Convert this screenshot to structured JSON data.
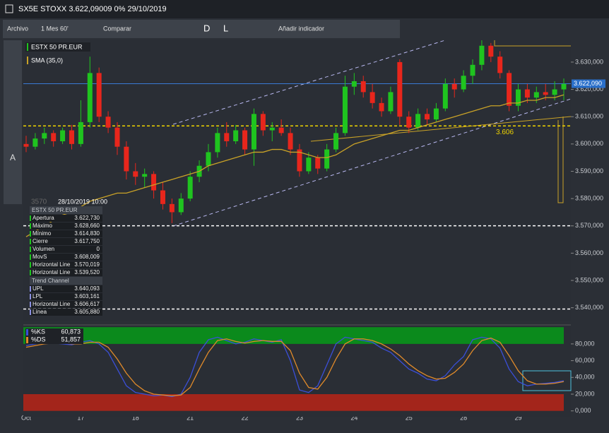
{
  "ui": {
    "title": "SX5E STOXX 3.622,09009 0% 29/10/2019",
    "toolbar": [
      "Archivo",
      "1 Mes 60'",
      "Comparar",
      "Añadir indicador",
      "D",
      "L"
    ],
    "tool_text": "A",
    "info": {
      "ghost": "3570",
      "date": "28/10/2019 10:00",
      "sections": [
        {
          "title": "ESTX 50 PR.EUR",
          "rows": [
            [
              "Apertura",
              "3.622,730"
            ],
            [
              "Máximo",
              "3.628,660"
            ],
            [
              "Mínimo",
              "3.614,830"
            ],
            [
              "Cierre",
              "3.617,750"
            ],
            [
              "Volumen",
              "0"
            ],
            [
              "MovS",
              "3.608,009"
            ],
            [
              "Horizontal Line",
              "3.570,019"
            ],
            [
              "Horizontal Line",
              "3.539,520"
            ]
          ]
        },
        {
          "title": "Trend Channel",
          "rows": [
            [
              "UPL",
              "3.640,093"
            ],
            [
              "LPL",
              "3.603,161"
            ],
            [
              "Horizontal Line",
              "3.606,617"
            ],
            [
              "Línea",
              "3.605,880"
            ]
          ]
        }
      ]
    }
  },
  "chart_data": [
    {
      "type": "candlestick",
      "legend": [
        "ESTX 50 PR.EUR",
        "SMA (35,0)"
      ],
      "up_color": "#1fc41f",
      "down_color": "#e8261c",
      "sma_color": "#c9a227",
      "categories": [
        "Oct",
        null,
        null,
        null,
        null,
        null,
        "17",
        null,
        null,
        null,
        null,
        null,
        "18",
        null,
        null,
        null,
        null,
        null,
        "21",
        null,
        null,
        null,
        null,
        null,
        "22",
        null,
        null,
        null,
        null,
        null,
        "23",
        null,
        null,
        null,
        null,
        null,
        "24",
        null,
        null,
        null,
        null,
        null,
        "25",
        null,
        null,
        null,
        null,
        null,
        "28",
        null,
        null,
        null,
        null,
        null,
        "29",
        null,
        null,
        null,
        null,
        null
      ],
      "candles": [
        [
          3600,
          3603,
          3597,
          3599
        ],
        [
          3599,
          3604,
          3598,
          3602
        ],
        [
          3602,
          3606,
          3600,
          3604
        ],
        [
          3604,
          3605,
          3599,
          3601
        ],
        [
          3601,
          3606,
          3600,
          3605
        ],
        [
          3605,
          3607,
          3598,
          3600
        ],
        [
          3600,
          3616,
          3599,
          3608
        ],
        [
          3608,
          3632,
          3606,
          3626
        ],
        [
          3626,
          3628,
          3608,
          3610
        ],
        [
          3610,
          3612,
          3604,
          3606
        ],
        [
          3606,
          3608,
          3596,
          3599
        ],
        [
          3599,
          3601,
          3587,
          3590
        ],
        [
          3590,
          3593,
          3585,
          3588
        ],
        [
          3588,
          3591,
          3584,
          3589
        ],
        [
          3589,
          3590,
          3580,
          3583
        ],
        [
          3583,
          3586,
          3576,
          3578
        ],
        [
          3578,
          3580,
          3571,
          3575
        ],
        [
          3575,
          3582,
          3574,
          3580
        ],
        [
          3580,
          3590,
          3579,
          3588
        ],
        [
          3588,
          3594,
          3586,
          3592
        ],
        [
          3592,
          3600,
          3590,
          3597
        ],
        [
          3597,
          3606,
          3595,
          3604
        ],
        [
          3604,
          3608,
          3599,
          3601
        ],
        [
          3601,
          3607,
          3600,
          3605
        ],
        [
          3605,
          3606,
          3596,
          3598
        ],
        [
          3598,
          3613,
          3592,
          3611
        ],
        [
          3611,
          3612,
          3603,
          3605
        ],
        [
          3605,
          3608,
          3601,
          3606
        ],
        [
          3606,
          3609,
          3603,
          3604
        ],
        [
          3604,
          3606,
          3596,
          3598
        ],
        [
          3598,
          3600,
          3588,
          3590
        ],
        [
          3590,
          3597,
          3589,
          3595
        ],
        [
          3595,
          3596,
          3589,
          3591
        ],
        [
          3591,
          3600,
          3590,
          3598
        ],
        [
          3598,
          3606,
          3597,
          3604
        ],
        [
          3604,
          3625,
          3603,
          3621
        ],
        [
          3621,
          3626,
          3618,
          3623
        ],
        [
          3623,
          3625,
          3617,
          3619
        ],
        [
          3619,
          3622,
          3613,
          3615
        ],
        [
          3615,
          3617,
          3610,
          3612
        ],
        [
          3612,
          3621,
          3611,
          3619
        ],
        [
          3630,
          3631,
          3607,
          3610
        ],
        [
          3610,
          3612,
          3604,
          3606
        ],
        [
          3606,
          3613,
          3605,
          3611
        ],
        [
          3611,
          3613,
          3607,
          3609
        ],
        [
          3609,
          3615,
          3608,
          3613
        ],
        [
          3613,
          3624,
          3612,
          3622
        ],
        [
          3622,
          3624,
          3617,
          3620
        ],
        [
          3620,
          3627,
          3619,
          3625
        ],
        [
          3625,
          3631,
          3622,
          3629
        ],
        [
          3629,
          3638,
          3627,
          3636
        ],
        [
          3636,
          3637,
          3630,
          3632
        ],
        [
          3632,
          3634,
          3624,
          3626
        ],
        [
          3626,
          3627,
          3612,
          3614
        ],
        [
          3614,
          3622,
          3612,
          3620
        ],
        [
          3620,
          3622,
          3615,
          3617
        ],
        [
          3617,
          3621,
          3615,
          3619
        ],
        [
          3619,
          3622,
          3616,
          3618
        ],
        [
          3618,
          3623,
          3616,
          3620
        ],
        [
          3620,
          3624,
          3616,
          3622
        ]
      ],
      "sma": [
        3566,
        3568,
        3570,
        3572,
        3574,
        3575,
        3577,
        3579,
        3580,
        3581,
        3582,
        3582,
        3583,
        3584,
        3585,
        3586,
        3587,
        3588,
        3589,
        3590,
        3592,
        3593,
        3594,
        3595,
        3596,
        3597,
        3597,
        3598,
        3598,
        3597,
        3597,
        3596,
        3595,
        3595,
        3596,
        3598,
        3600,
        3601,
        3602,
        3603,
        3604,
        3605,
        3605,
        3606,
        3607,
        3608,
        3609,
        3610,
        3611,
        3612,
        3613,
        3614,
        3614,
        3615,
        3615,
        3616,
        3616,
        3617,
        3617,
        3618
      ],
      "ylim": [
        3535,
        3638
      ],
      "yticks": [
        {
          "value": 3540,
          "label": "3.540,000"
        },
        {
          "value": 3550,
          "label": "3.550,000"
        },
        {
          "value": 3560,
          "label": "3.560,000"
        },
        {
          "value": 3570,
          "label": "3.570,000"
        },
        {
          "value": 3580,
          "label": "3.580,000"
        },
        {
          "value": 3590,
          "label": "3.590,000"
        },
        {
          "value": 3600,
          "label": "3.600,000"
        },
        {
          "value": 3610,
          "label": "3.610,000"
        },
        {
          "value": 3620,
          "label": "3.620,000"
        },
        {
          "value": 3630,
          "label": "3.630,000"
        }
      ],
      "last": {
        "value": 3622.09,
        "label": "3.622,090"
      },
      "hlines": [
        {
          "value": 3570.019,
          "color": "#ffffff"
        },
        {
          "value": 3539.52,
          "color": "#ffffff"
        },
        {
          "value": 3606.617,
          "color": "#f0d400",
          "label": "3.606"
        }
      ]
    },
    {
      "type": "stochastic",
      "series": [
        {
          "name": "%KS",
          "legend_value": "60,873",
          "color": "#3b4fd8",
          "values": [
            78,
            80,
            82,
            81,
            80,
            79,
            82,
            84,
            80,
            70,
            50,
            30,
            22,
            20,
            18,
            19,
            17,
            20,
            40,
            70,
            85,
            88,
            84,
            80,
            82,
            86,
            84,
            82,
            85,
            60,
            25,
            22,
            30,
            55,
            80,
            88,
            86,
            84,
            82,
            75,
            70,
            60,
            50,
            45,
            38,
            36,
            42,
            55,
            65,
            85,
            88,
            86,
            75,
            50,
            35,
            30,
            32,
            33,
            34,
            36
          ]
        },
        {
          "name": "%DS",
          "legend_value": "51,857",
          "color": "#e08a2a",
          "values": [
            76,
            78,
            80,
            81,
            81,
            80,
            80,
            82,
            82,
            76,
            62,
            45,
            32,
            24,
            20,
            19,
            18,
            19,
            28,
            50,
            70,
            84,
            86,
            83,
            81,
            83,
            84,
            83,
            83,
            72,
            45,
            28,
            26,
            40,
            62,
            80,
            86,
            86,
            84,
            80,
            74,
            66,
            56,
            48,
            42,
            38,
            39,
            46,
            56,
            72,
            84,
            87,
            82,
            66,
            48,
            36,
            32,
            32,
            33,
            35
          ]
        }
      ],
      "bands": [
        {
          "from": 80,
          "to": 100,
          "color": "#0b8a1c"
        },
        {
          "from": 0,
          "to": 20,
          "color": "#a3251b"
        }
      ],
      "ylim": [
        -7,
        101
      ],
      "yticks": [
        {
          "value": 0,
          "label": "0,000"
        },
        {
          "value": 20,
          "label": "20,000"
        },
        {
          "value": 40,
          "label": "40,000"
        },
        {
          "value": 60,
          "label": "60,000"
        },
        {
          "value": 80,
          "label": "80,000"
        }
      ]
    }
  ]
}
